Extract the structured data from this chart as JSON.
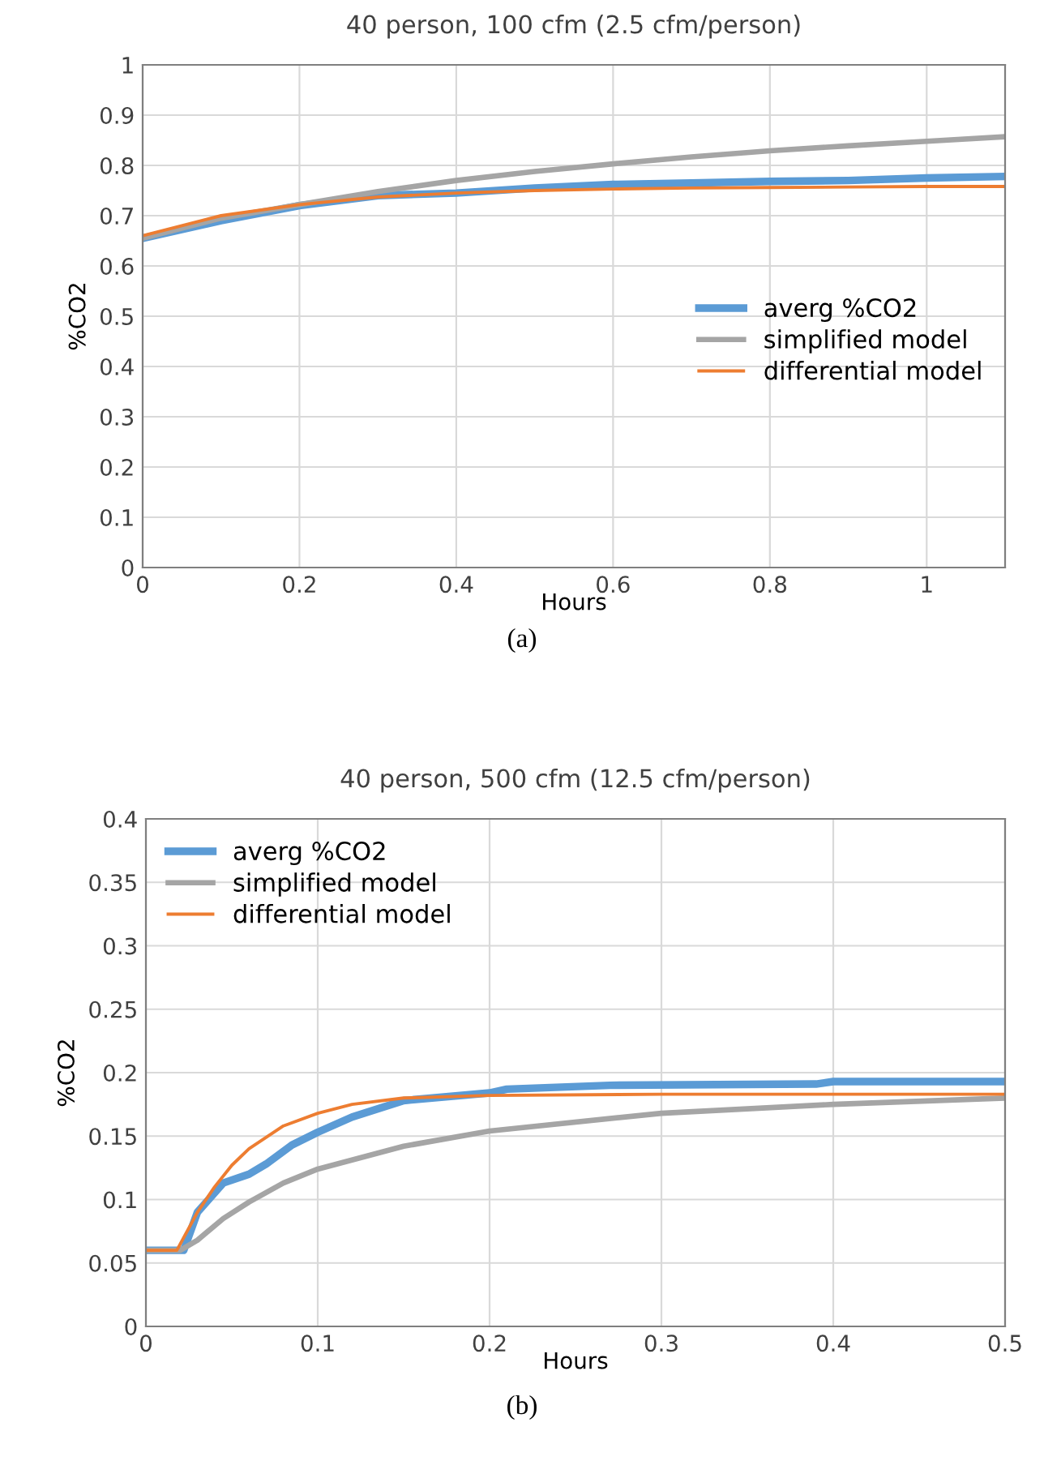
{
  "chart_data": [
    {
      "type": "line",
      "title": "40 person, 100 cfm (2.5 cfm/person)",
      "xlabel": "Hours",
      "ylabel": "%CO2",
      "annotations": [
        "(a)"
      ],
      "xlim": [
        0,
        1.1
      ],
      "xticks": [
        0,
        0.2,
        0.4,
        0.6,
        0.8,
        1
      ],
      "ylim": [
        0,
        1
      ],
      "yticks": [
        0,
        0.1,
        0.2,
        0.3,
        0.4,
        0.5,
        0.6,
        0.7,
        0.8,
        0.9,
        1
      ],
      "grid": true,
      "legend": "right",
      "marker": "none",
      "line_style": "solid",
      "series": [
        {
          "name": "averg %CO2",
          "color": "#5b9bd5",
          "x": [
            0,
            0.1,
            0.2,
            0.3,
            0.4,
            0.5,
            0.6,
            0.7,
            0.8,
            0.9,
            1.0,
            1.1
          ],
          "values": [
            0.655,
            0.69,
            0.72,
            0.74,
            0.745,
            0.755,
            0.762,
            0.765,
            0.768,
            0.77,
            0.775,
            0.778
          ]
        },
        {
          "name": "simplified model",
          "color": "#a5a5a5",
          "x": [
            0,
            0.1,
            0.2,
            0.3,
            0.4,
            0.5,
            0.6,
            0.7,
            0.8,
            0.9,
            1.0,
            1.1
          ],
          "values": [
            0.655,
            0.695,
            0.722,
            0.748,
            0.77,
            0.788,
            0.803,
            0.817,
            0.829,
            0.839,
            0.848,
            0.857
          ]
        },
        {
          "name": "differential model",
          "color": "#ed7d31",
          "x": [
            0,
            0.1,
            0.2,
            0.3,
            0.4,
            0.5,
            0.6,
            0.7,
            0.8,
            0.9,
            1.0,
            1.1
          ],
          "values": [
            0.66,
            0.7,
            0.722,
            0.737,
            0.745,
            0.75,
            0.753,
            0.755,
            0.756,
            0.757,
            0.758,
            0.758
          ]
        }
      ]
    },
    {
      "type": "line",
      "title": "40 person, 500 cfm (12.5 cfm/person)",
      "xlabel": "Hours",
      "ylabel": "%CO2",
      "annotations": [
        "(b)"
      ],
      "xlim": [
        0,
        0.5
      ],
      "xticks": [
        0,
        0.1,
        0.2,
        0.3,
        0.4,
        0.5
      ],
      "ylim": [
        0,
        0.4
      ],
      "yticks": [
        0,
        0.05,
        0.1,
        0.15,
        0.2,
        0.25,
        0.3,
        0.35,
        0.4
      ],
      "grid": true,
      "legend": "top left",
      "marker": "none",
      "line_style": "solid",
      "series": [
        {
          "name": "averg %CO2",
          "color": "#5b9bd5",
          "x": [
            0,
            0.022,
            0.03,
            0.045,
            0.06,
            0.07,
            0.085,
            0.1,
            0.12,
            0.15,
            0.2,
            0.21,
            0.27,
            0.39,
            0.4,
            0.5
          ],
          "values": [
            0.06,
            0.06,
            0.09,
            0.113,
            0.12,
            0.128,
            0.143,
            0.153,
            0.165,
            0.178,
            0.184,
            0.187,
            0.19,
            0.191,
            0.193,
            0.193
          ]
        },
        {
          "name": "simplified model",
          "color": "#a5a5a5",
          "x": [
            0,
            0.02,
            0.03,
            0.045,
            0.06,
            0.08,
            0.1,
            0.15,
            0.2,
            0.3,
            0.4,
            0.5
          ],
          "values": [
            0.06,
            0.06,
            0.068,
            0.085,
            0.098,
            0.113,
            0.124,
            0.142,
            0.154,
            0.168,
            0.175,
            0.18
          ]
        },
        {
          "name": "differential model",
          "color": "#ed7d31",
          "x": [
            0,
            0.018,
            0.03,
            0.04,
            0.05,
            0.06,
            0.08,
            0.1,
            0.12,
            0.15,
            0.2,
            0.3,
            0.5
          ],
          "values": [
            0.06,
            0.06,
            0.09,
            0.11,
            0.127,
            0.14,
            0.158,
            0.168,
            0.175,
            0.18,
            0.182,
            0.183,
            0.183
          ]
        }
      ]
    }
  ]
}
